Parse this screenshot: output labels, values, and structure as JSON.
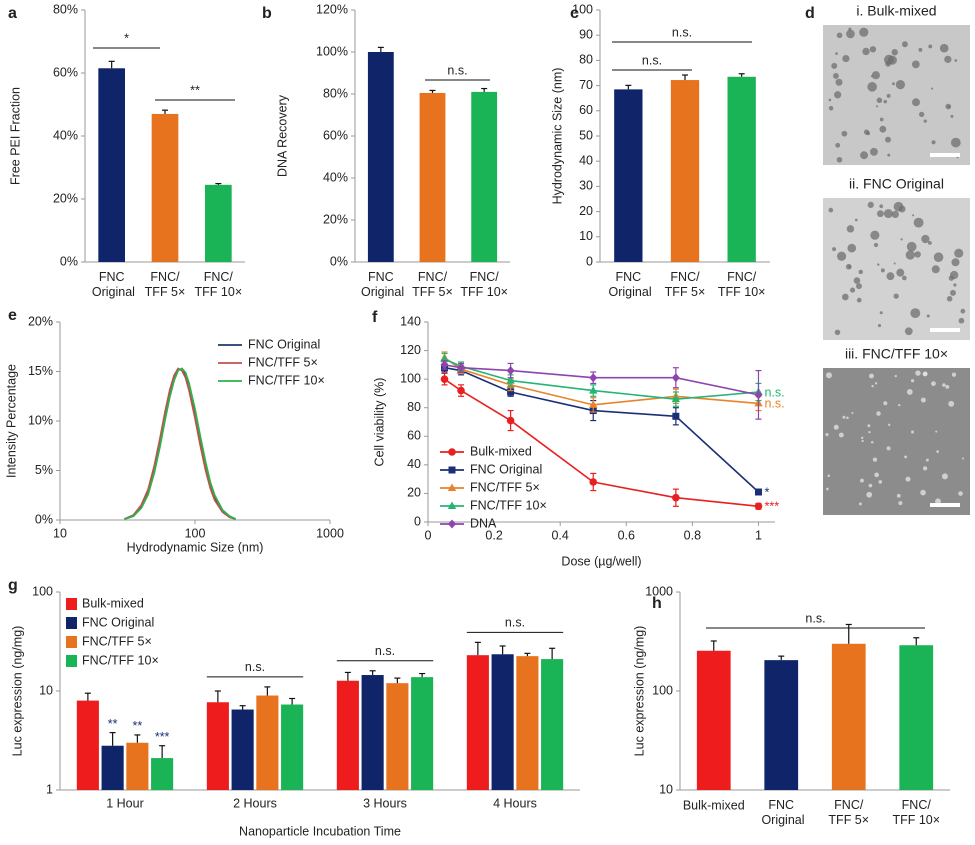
{
  "chart_data": [
    {
      "type": "bar",
      "label": "a",
      "ylabel": "Free PEI Fraction",
      "categories": [
        "FNC Original",
        "FNC/TFF 5×",
        "FNC/TFF 10×"
      ],
      "values": [
        61.5,
        47,
        24.5
      ],
      "errors": [
        2.2,
        1.2,
        0.4
      ],
      "colors": [
        "#10246a",
        "#e8731e",
        "#1ab355"
      ],
      "ylim": [
        0,
        80
      ],
      "yticks": [
        {
          "value": 0,
          "label": "0%"
        },
        {
          "value": 20,
          "label": "20%"
        },
        {
          "value": 40,
          "label": "40%"
        },
        {
          "value": 60,
          "label": "60%"
        },
        {
          "value": 80,
          "label": "80%"
        }
      ],
      "annotations": [
        "*",
        "**"
      ]
    },
    {
      "type": "bar",
      "label": "b",
      "ylabel": "DNA Recovery",
      "categories": [
        "FNC Original",
        "FNC/TFF 5×",
        "FNC/TFF 10×"
      ],
      "values": [
        100,
        80.5,
        81
      ],
      "errors": [
        2.2,
        1.2,
        1.6
      ],
      "colors": [
        "#10246a",
        "#e8731e",
        "#1ab355"
      ],
      "ylim": [
        0,
        120
      ],
      "yticks": [
        {
          "value": 0,
          "label": "0%"
        },
        {
          "value": 20,
          "label": "20%"
        },
        {
          "value": 40,
          "label": "40%"
        },
        {
          "value": 60,
          "label": "60%"
        },
        {
          "value": 80,
          "label": "80%"
        },
        {
          "value": 100,
          "label": "100%"
        },
        {
          "value": 120,
          "label": "120%"
        }
      ],
      "annotations": [
        "n.s."
      ]
    },
    {
      "type": "bar",
      "label": "c",
      "ylabel": "Hydrodynamic Size (nm)",
      "categories": [
        "FNC Original",
        "FNC/TFF 5×",
        "FNC/TFF 10×"
      ],
      "values": [
        68.5,
        72.2,
        73.5
      ],
      "errors": [
        1.6,
        2,
        1.2
      ],
      "colors": [
        "#10246a",
        "#e8731e",
        "#1ab355"
      ],
      "ylim": [
        0,
        100
      ],
      "yticks": [
        0,
        10,
        20,
        30,
        40,
        50,
        60,
        70,
        80,
        90,
        100
      ],
      "annotations": [
        "n.s.",
        "n.s."
      ]
    },
    {
      "type": "line",
      "label": "e",
      "xlabel": "Hydrodynamic Size (nm)",
      "ylabel": "Intensity Percentage",
      "xlog": true,
      "xlim": [
        10,
        1000
      ],
      "xticks": [
        10,
        100,
        1000
      ],
      "ylim": [
        0,
        20
      ],
      "yticks": [
        {
          "value": 0,
          "label": "0%"
        },
        {
          "value": 5,
          "label": "5%"
        },
        {
          "value": 10,
          "label": "10%"
        },
        {
          "value": 15,
          "label": "15%"
        },
        {
          "value": 20,
          "label": "20%"
        }
      ],
      "x": [
        30,
        35,
        40,
        45,
        50,
        55,
        60,
        65,
        70,
        75,
        80,
        85,
        90,
        100,
        110,
        120,
        130,
        140,
        160,
        180,
        200
      ],
      "series": [
        {
          "name": "FNC Original",
          "color": "#1f3864",
          "values": [
            0.1,
            0.4,
            1.3,
            2.8,
            5.1,
            7.7,
            10.4,
            12.7,
            14.3,
            15.2,
            15.2,
            14.7,
            13.6,
            10.8,
            7.9,
            5.4,
            3.5,
            2.3,
            0.9,
            0.3,
            0.1
          ]
        },
        {
          "name": "FNC/TFF 5×",
          "color": "#c0504d",
          "values": [
            0.1,
            0.5,
            1.5,
            3.1,
            5.5,
            8.2,
            10.9,
            13.1,
            14.6,
            15.3,
            15.1,
            14.4,
            13.2,
            10.3,
            7.4,
            5.0,
            3.2,
            2.0,
            0.8,
            0.3,
            0.1
          ]
        },
        {
          "name": "FNC/TFF 10×",
          "color": "#2db34a",
          "values": [
            0.1,
            0.4,
            1.2,
            2.6,
            4.8,
            7.4,
            10.1,
            12.4,
            14.1,
            15.1,
            15.3,
            14.9,
            13.9,
            11.2,
            8.3,
            5.8,
            3.8,
            2.5,
            1.0,
            0.4,
            0.1
          ]
        }
      ]
    },
    {
      "type": "line",
      "label": "f",
      "xlabel": "Dose (µg/well)",
      "ylabel": "Cell viability (%)",
      "xlim": [
        0,
        1.05
      ],
      "xticks": [
        0,
        0.2,
        0.4,
        0.6,
        0.8,
        1
      ],
      "ylim": [
        0,
        140
      ],
      "yticks": [
        0,
        20,
        40,
        60,
        80,
        100,
        120,
        140
      ],
      "x": [
        0.05,
        0.1,
        0.25,
        0.5,
        0.75,
        1
      ],
      "series": [
        {
          "name": "Bulk-mixed",
          "color": "#e8201f",
          "marker": "circle",
          "values": [
            100,
            92,
            71,
            28,
            17,
            11
          ],
          "errors": [
            4,
            4,
            7,
            6,
            6,
            2
          ]
        },
        {
          "name": "FNC Original",
          "color": "#1a2f78",
          "marker": "square",
          "values": [
            108,
            106,
            91,
            78,
            74,
            21
          ],
          "errors": [
            3,
            3,
            3,
            7,
            6,
            2
          ]
        },
        {
          "name": "FNC/TFF 5×",
          "color": "#e8832a",
          "marker": "triangle",
          "values": [
            115,
            107,
            96,
            82,
            88,
            83
          ],
          "errors": [
            4,
            3,
            4,
            5,
            5,
            5
          ]
        },
        {
          "name": "FNC/TFF 10×",
          "color": "#22b573",
          "marker": "triangle",
          "values": [
            114,
            109,
            99,
            92,
            86,
            91
          ],
          "errors": [
            4,
            3,
            4,
            4,
            5,
            6
          ]
        },
        {
          "name": "DNA",
          "color": "#8e44ad",
          "marker": "diamond",
          "values": [
            110,
            108,
            106,
            101,
            101,
            89
          ],
          "errors": [
            3,
            3,
            5,
            4,
            7,
            17
          ]
        }
      ],
      "annotations": [
        "n.s.",
        "n.s.",
        "*",
        "***"
      ]
    },
    {
      "type": "grouped_bar",
      "label": "g",
      "xlabel": "Nanoparticle Incubation Time",
      "ylabel": "Luc expression (ng/mg)",
      "ylog": true,
      "ylim": [
        1,
        100
      ],
      "yticks": [
        1,
        10,
        100
      ],
      "categories": [
        "1 Hour",
        "2 Hours",
        "3 Hours",
        "4 Hours"
      ],
      "series": [
        {
          "name": "Bulk-mixed",
          "color": "#ee1c1c",
          "values": [
            8,
            7.7,
            12.7,
            23
          ],
          "errors": [
            1.5,
            2.3,
            2.7,
            8
          ]
        },
        {
          "name": "FNC Original",
          "color": "#10246a",
          "values": [
            2.8,
            6.5,
            14.5,
            23.5
          ],
          "errors": [
            1,
            0.6,
            1.5,
            5
          ]
        },
        {
          "name": "FNC/TFF 5×",
          "color": "#e8731e",
          "values": [
            3,
            9,
            12,
            22.5
          ],
          "errors": [
            0.6,
            2,
            1.5,
            1.5
          ]
        },
        {
          "name": "FNC/TFF 10×",
          "color": "#1ab355",
          "values": [
            2.1,
            7.3,
            13.8,
            21
          ],
          "errors": [
            0.7,
            1.1,
            1.2,
            6
          ]
        }
      ],
      "annotations": [
        "**",
        "**",
        "***",
        "n.s.",
        "n.s.",
        "n.s."
      ]
    },
    {
      "type": "bar",
      "label": "h",
      "ylabel": "Luc expression (ng/mg)",
      "ylog": true,
      "ylim": [
        10,
        1000
      ],
      "yticks": [
        10,
        100,
        1000
      ],
      "categories": [
        "Bulk-mixed",
        "FNC Original",
        "FNC/TFF 5×",
        "FNC/TFF 10×"
      ],
      "values": [
        255,
        205,
        300,
        290
      ],
      "errors": [
        65,
        20,
        170,
        55
      ],
      "colors": [
        "#ee1c1c",
        "#10246a",
        "#e8731e",
        "#1ab355"
      ],
      "annotations": [
        "n.s."
      ]
    }
  ],
  "micrographs": {
    "label": "d",
    "images": [
      "i. Bulk-mixed",
      "ii. FNC Original",
      "iii. FNC/TFF 10×"
    ]
  }
}
